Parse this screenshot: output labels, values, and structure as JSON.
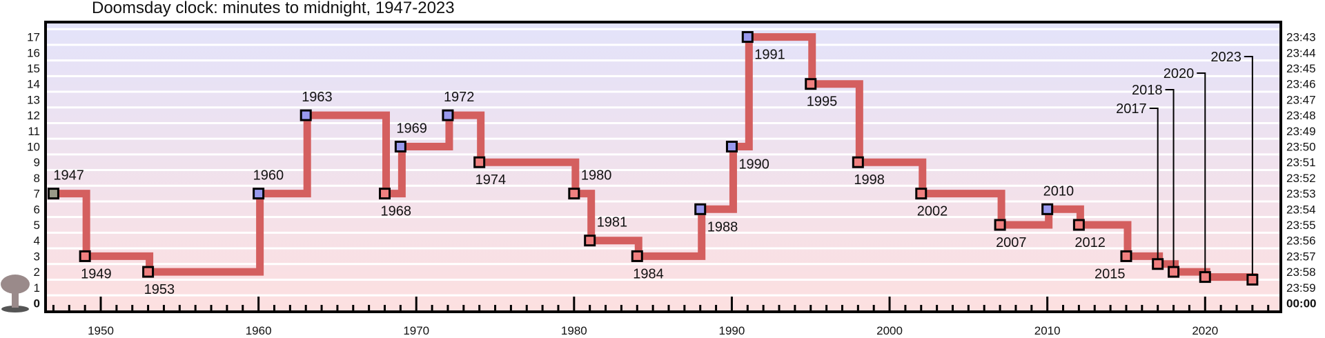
{
  "chart_data": {
    "type": "line",
    "title": "Doomsday clock: minutes to midnight, 1947-2023",
    "xlabel": "",
    "ylabel": "",
    "xlim": [
      1946.5,
      2024.8
    ],
    "ylim": [
      0,
      17
    ],
    "x_ticks": [
      "1950",
      "1960",
      "1970",
      "1980",
      "1990",
      "2000",
      "2010",
      "2020"
    ],
    "y_ticks_left": [
      "0",
      "1",
      "2",
      "3",
      "4",
      "5",
      "6",
      "7",
      "8",
      "9",
      "10",
      "11",
      "12",
      "13",
      "14",
      "15",
      "16",
      "17"
    ],
    "y_ticks_right": [
      "00:00",
      "23:59",
      "23:58",
      "23:57",
      "23:56",
      "23:55",
      "23:54",
      "23:53",
      "23:52",
      "23:51",
      "23:50",
      "23:49",
      "23:48",
      "23:47",
      "23:46",
      "23:45",
      "23:44",
      "23:43"
    ],
    "series": [
      {
        "x": [
          1947,
          1949,
          1953,
          1960,
          1963,
          1968,
          1969,
          1972,
          1974,
          1980,
          1981,
          1984,
          1988,
          1990,
          1991,
          1995,
          1998,
          2002,
          2007,
          2010,
          2012,
          2015,
          2017,
          2018,
          2020,
          2023
        ],
        "y": [
          7,
          3,
          2,
          7,
          12,
          7,
          10,
          12,
          9,
          7,
          4,
          3,
          6,
          10,
          17,
          14,
          9,
          7,
          5,
          6,
          5,
          3,
          2.5,
          2,
          1.67,
          1.5
        ],
        "labels": [
          "1947",
          "1949",
          "1953",
          "1960",
          "1963",
          "1968",
          "1969",
          "1972",
          "1974",
          "1980",
          "1981",
          "1984",
          "1988",
          "1990",
          "1991",
          "1995",
          "1998",
          "2002",
          "2007",
          "2010",
          "2012",
          "2015",
          "2017",
          "2018",
          "2020",
          "2023"
        ],
        "direction": [
          "start",
          "closer",
          "closer",
          "farther",
          "farther",
          "closer",
          "farther",
          "farther",
          "closer",
          "closer",
          "closer",
          "closer",
          "farther",
          "farther",
          "farther",
          "closer",
          "closer",
          "closer",
          "closer",
          "farther",
          "closer",
          "closer",
          "closer",
          "closer",
          "closer",
          "closer"
        ]
      }
    ],
    "grid": true,
    "legend": "none",
    "colors": {
      "line": "#d45f5f",
      "marker_closer": "#f08080",
      "marker_farther": "#9999ee",
      "marker_start": "#999988",
      "band_top": "#e3e3fa",
      "band_bottom": "#fde0e0",
      "midnight_label": "#e01010",
      "frame": "#000000",
      "icon": "#9a8a8a"
    },
    "icons": [
      "mushroom-cloud-icon"
    ]
  }
}
